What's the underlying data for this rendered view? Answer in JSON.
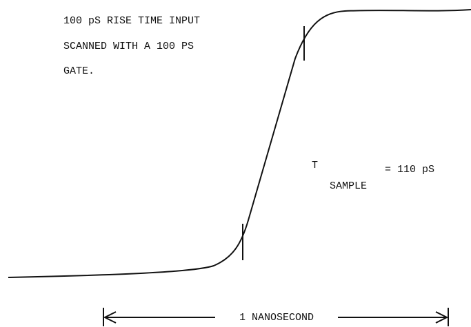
{
  "annotation": {
    "lines": [
      "100 pS RISE TIME INPUT",
      "SCANNED WITH A 100 PS",
      "GATE."
    ]
  },
  "formula": {
    "symbol": "T",
    "subscript": "SAMPLE",
    "value": "= 110 pS"
  },
  "scale": {
    "label": "1 NANOSECOND"
  }
}
